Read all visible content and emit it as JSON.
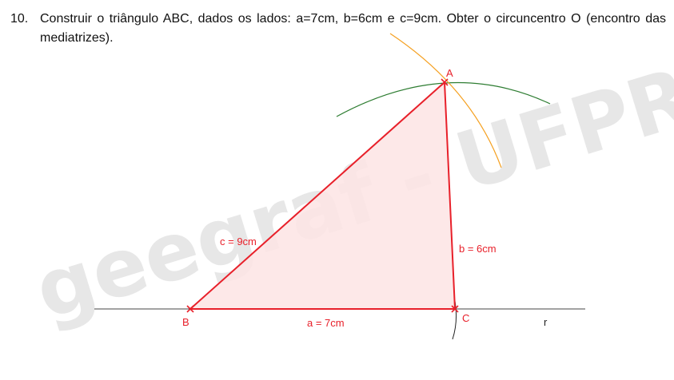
{
  "exercise": {
    "number": "10.",
    "statement": "Construir o triângulo ABC, dados os lados: a=7cm, b=6cm e c=9cm. Obter o circuncentro O (encontro das mediatrizes)."
  },
  "watermark": "geegraf - UFPR",
  "figure": {
    "vertices": {
      "A": "A",
      "B": "B",
      "C": "C"
    },
    "line_label": "r",
    "sides": {
      "a": "a = 7cm",
      "b": "b = 6cm",
      "c": "c = 9cm"
    }
  },
  "colors": {
    "triangle": "#e8202a",
    "triangle_fill": "#fde4e4",
    "arc_green": "#2e7d32",
    "arc_orange": "#f5a020",
    "line": "#444444",
    "watermark": "#d3d3d3"
  }
}
